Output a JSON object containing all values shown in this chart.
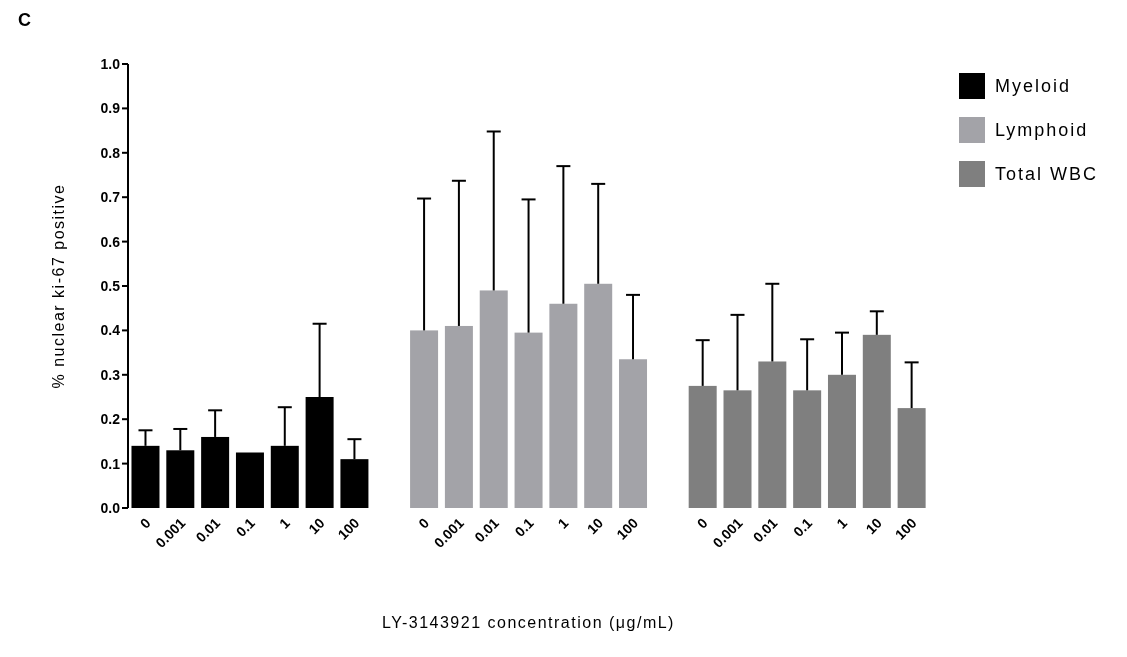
{
  "chart_data": {
    "type": "bar",
    "title": "C",
    "xlabel": "LY-3143921 concentration (μg/mL)",
    "ylabel": "% nuclear ki-67 positive",
    "categories": [
      "0",
      "0.001",
      "0.01",
      "0.1",
      "1",
      "10",
      "100",
      null,
      "0",
      "0.001",
      "0.01",
      "0.1",
      "1",
      "10",
      "100",
      null,
      "0",
      "0.001",
      "0.01",
      "0.1",
      "1",
      "10",
      "100"
    ],
    "series": [
      {
        "name": "Myeloid",
        "color": "#000000",
        "values": [
          0.14,
          0.13,
          0.16,
          0.125,
          0.14,
          0.25,
          0.11,
          null,
          null,
          null,
          null,
          null,
          null,
          null,
          null,
          null,
          null,
          null,
          null,
          null,
          null,
          null,
          null
        ],
        "errors": [
          [
            0.14,
            0.175
          ],
          [
            0.13,
            0.178
          ],
          [
            0.16,
            0.22
          ],
          null,
          [
            0.14,
            0.227
          ],
          [
            0.25,
            0.415
          ],
          [
            0.11,
            0.155
          ],
          null,
          null,
          null,
          null,
          null,
          null,
          null,
          null,
          null,
          null,
          null,
          null,
          null,
          null,
          null,
          null
        ]
      },
      {
        "name": "Lymphoid",
        "color": "#a3a3a8",
        "values": [
          null,
          null,
          null,
          null,
          null,
          null,
          null,
          null,
          0.4,
          0.41,
          0.49,
          0.395,
          0.46,
          0.505,
          0.335,
          null,
          null,
          null,
          null,
          null,
          null,
          null,
          null
        ],
        "errors": [
          null,
          null,
          null,
          null,
          null,
          null,
          null,
          null,
          [
            0.4,
            0.697
          ],
          [
            0.41,
            0.737
          ],
          [
            0.49,
            0.848
          ],
          [
            0.395,
            0.695
          ],
          [
            0.46,
            0.77
          ],
          [
            0.505,
            0.73
          ],
          [
            0.335,
            0.48
          ],
          null,
          null,
          null,
          null,
          null,
          null,
          null,
          null
        ]
      },
      {
        "name": "Total WBC",
        "color": "#7f7f7f",
        "values": [
          null,
          null,
          null,
          null,
          null,
          null,
          null,
          null,
          null,
          null,
          null,
          null,
          null,
          null,
          null,
          null,
          0.275,
          0.265,
          0.33,
          0.265,
          0.3,
          0.39,
          0.225
        ],
        "errors": [
          null,
          null,
          null,
          null,
          null,
          null,
          null,
          null,
          null,
          null,
          null,
          null,
          null,
          null,
          null,
          null,
          [
            0.275,
            0.378
          ],
          [
            0.265,
            0.435
          ],
          [
            0.33,
            0.505
          ],
          [
            0.265,
            0.38
          ],
          [
            0.3,
            0.395
          ],
          [
            0.39,
            0.443
          ],
          [
            0.225,
            0.328
          ]
        ]
      }
    ],
    "ylim": [
      0,
      1
    ],
    "yticks": [
      {
        "value": 0,
        "label": "0.0"
      },
      0.1,
      0.2,
      0.3,
      0.4,
      0.5,
      0.6,
      0.7,
      0.8,
      0.9,
      {
        "value": 1,
        "label": "1.0"
      }
    ],
    "legend": "top right",
    "grid": false
  }
}
